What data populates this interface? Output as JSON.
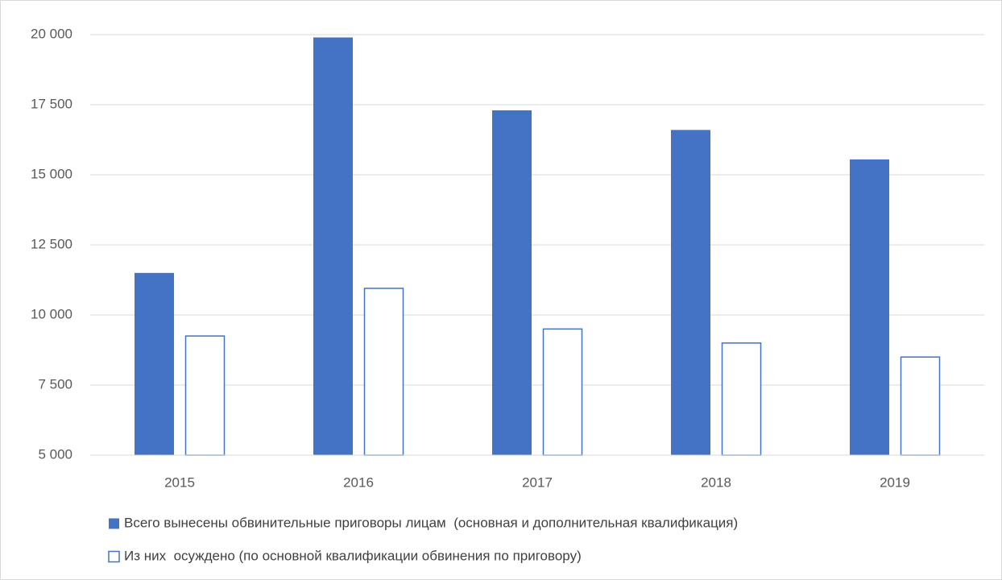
{
  "chart_data": {
    "type": "bar",
    "categories": [
      "2015",
      "2016",
      "2017",
      "2018",
      "2019"
    ],
    "series": [
      {
        "name": "Всего вынесены обвинительные приговоры лицам  (основная и дополнительная квалификация)",
        "color": "#4472c4",
        "fill": "solid",
        "values": [
          11500,
          19900,
          17300,
          16600,
          15550
        ]
      },
      {
        "name": "Из них  осуждено (по основной квалификации обвинения по приговору)",
        "color": "#4472c4",
        "fill": "none",
        "values": [
          9250,
          10950,
          9500,
          9000,
          8500
        ]
      }
    ],
    "ylim": [
      5000,
      20000
    ],
    "yticks": [
      {
        "value": 5000,
        "label": "5 000"
      },
      {
        "value": 7500,
        "label": "7 500"
      },
      {
        "value": 10000,
        "label": "10 000"
      },
      {
        "value": 12500,
        "label": "12 500"
      },
      {
        "value": 15000,
        "label": "15 000"
      },
      {
        "value": 17500,
        "label": "17 500"
      },
      {
        "value": 20000,
        "label": "20 000"
      }
    ],
    "grid": true,
    "legend": "bottom"
  }
}
